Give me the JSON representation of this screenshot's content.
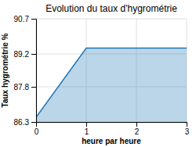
{
  "chart_data": {
    "type": "area",
    "title": "Evolution du taux d'hygrométrie",
    "xlabel": "heure par heure",
    "ylabel": "Taux hygrométrie %",
    "x": [
      0,
      1,
      3
    ],
    "values": [
      86.5,
      89.45,
      89.45
    ],
    "xlim": [
      0,
      3
    ],
    "ylim": [
      86.3,
      90.7
    ],
    "xticks": [
      0,
      1,
      2,
      3
    ],
    "yticks": [
      86.3,
      87.8,
      89.2,
      90.7
    ],
    "grid": true
  }
}
